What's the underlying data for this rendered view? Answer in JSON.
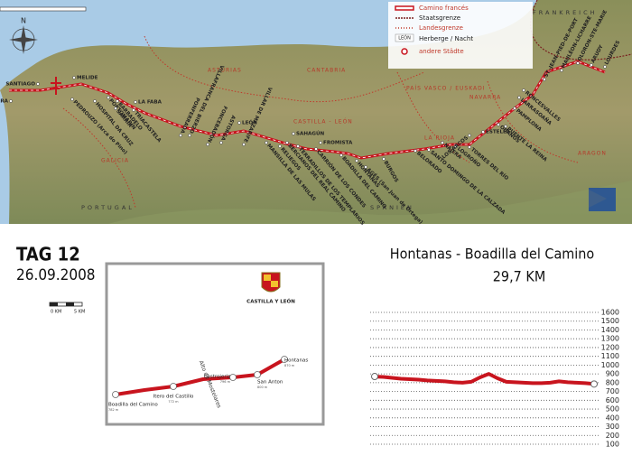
{
  "map": {
    "compass": "N",
    "legend": [
      "Camino francés",
      "Staatsgrenze",
      "Landesgrenze",
      "LEÓN",
      "Herberge / Nacht",
      "andere Städte"
    ],
    "countries": [
      "FRANKREICH",
      "SPANIEN",
      "PORTUGAL"
    ],
    "regions": [
      "ASTURIAS",
      "CANTABRIA",
      "CASTILLA - LEÓN",
      "GALICIA",
      "PAÍS VASCO / EUSKADI",
      "NAVARRA",
      "LA RIOJA",
      "ARAGON"
    ],
    "towns": [
      "FISTERRA",
      "SANTIAGO",
      "MELIDE",
      "PEDROUZO (Arca do Pino)",
      "HOSPITAL DA CRUZ",
      "PORTOMARÍN",
      "BARBADELO",
      "SARRIA",
      "TRIACASTELA",
      "LA FABA",
      "VILLAFRANCA DEL BIERZO",
      "PONFERRADA",
      "FONCEBADÓN",
      "ASTORGA",
      "VILLAR DE MAZARIFE",
      "LEÓN",
      "MANSILLA DE LAS MULAS",
      "RELIEGOS",
      "BERCIANOS DEL REAL CAMINO",
      "TERRADILLOS DE LOS TEMPLARIOS",
      "SAHAGÚN",
      "CARRIÓN DE LOS CONDES",
      "FROMISTA",
      "BOADILLA DEL CAMINO",
      "HONTANAS",
      "BURGOS",
      "AGÉS (San Juan de Ortega)",
      "BELORADO",
      "SANTO DOMINGO DE LA CALZADA",
      "NAJERA",
      "LOGROÑO",
      "TORRES DEL RÍO",
      "LOS ARCOS",
      "ESTELLA",
      "OBANOS",
      "PUENTE LA REINA",
      "PAMPLONA",
      "LARRASOAÑA",
      "RONCESVALLES",
      "ST.-JEAN-PIED-DE-PORT",
      "MAULÉON-LICHARRE",
      "OLORON-STE-MARIE",
      "ARUDY",
      "LOURDES"
    ]
  },
  "day": {
    "label": "TAG 12",
    "date": "26.09.2008",
    "scale": [
      "0 KM",
      "5 KM"
    ]
  },
  "detail_map": {
    "region": "CASTILLA Y LEÓN",
    "pass": "Alto de Mostelares",
    "places": [
      {
        "name": "Hontanas",
        "elevation": "870 m"
      },
      {
        "name": "San Anton",
        "elevation": "800 m"
      },
      {
        "name": "Castrojeriz",
        "elevation": "796 m"
      },
      {
        "name": "Itero del Castillo",
        "elevation": "772 m"
      },
      {
        "name": "Boadilla del Camino",
        "elevation": "782 m"
      }
    ]
  },
  "stage": {
    "title": "Hontanas - Boadilla del Camino",
    "distance": "29,7 KM"
  },
  "chart_data": {
    "type": "line",
    "categories": [
      null,
      null,
      null,
      null,
      null,
      null,
      null,
      null,
      null,
      null,
      null,
      null,
      null,
      null,
      null,
      null,
      null,
      null,
      null,
      null,
      null,
      null,
      null,
      null,
      null,
      null
    ],
    "values": [
      870,
      865,
      855,
      845,
      840,
      835,
      825,
      820,
      815,
      805,
      800,
      810,
      860,
      900,
      850,
      810,
      805,
      800,
      795,
      795,
      800,
      815,
      805,
      800,
      795,
      785
    ],
    "color": "#c8141e",
    "ylim": [
      100,
      1600
    ],
    "yticks": [
      100,
      200,
      300,
      400,
      500,
      600,
      700,
      800,
      900,
      1000,
      1100,
      1200,
      1300,
      1400,
      1500,
      1600
    ],
    "yticks_highlight": [
      500,
      1000,
      1500
    ],
    "highlight_color": "#c0392b",
    "grid": true
  }
}
